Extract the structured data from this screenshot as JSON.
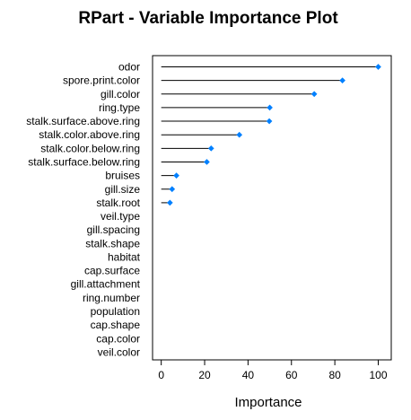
{
  "chart_data": {
    "type": "lollipop",
    "title": "RPart - Variable Importance Plot",
    "xlabel": "Importance",
    "ylabel": "",
    "xlim": [
      -4,
      106
    ],
    "xticks": [
      0,
      20,
      40,
      60,
      80,
      100
    ],
    "grid": false,
    "point_color": "#0080ff",
    "categories": [
      "odor",
      "spore.print.color",
      "gill.color",
      "ring.type",
      "stalk.surface.above.ring",
      "stalk.color.above.ring",
      "stalk.color.below.ring",
      "stalk.surface.below.ring",
      "bruises",
      "gill.size",
      "stalk.root",
      "veil.type",
      "gill.spacing",
      "stalk.shape",
      "habitat",
      "cap.surface",
      "gill.attachment",
      "ring.number",
      "population",
      "cap.shape",
      "cap.color",
      "veil.color"
    ],
    "values": [
      100,
      83.5,
      70.5,
      50,
      49.8,
      36,
      23,
      21,
      7,
      5,
      4,
      null,
      null,
      null,
      null,
      null,
      null,
      null,
      null,
      null,
      null,
      null
    ]
  }
}
